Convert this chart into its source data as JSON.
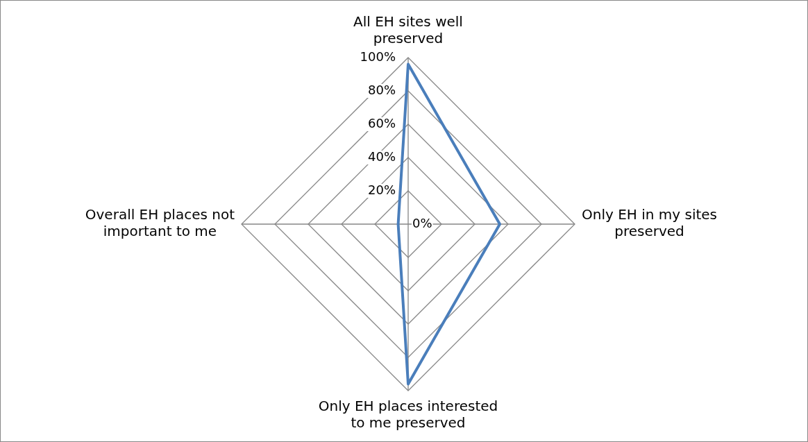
{
  "chart_data": {
    "type": "radar",
    "categories": [
      "All EH sites well preserved",
      "Only EH in my sites preserved",
      "Only EH places interested to me preserved",
      "Overall EH places not important to me"
    ],
    "series": [
      {
        "color": "#4a7ebb",
        "values": [
          96,
          55,
          96,
          6
        ]
      }
    ],
    "ylim": [
      0,
      100
    ],
    "yticks": [
      {
        "value": 0,
        "label": "0%"
      },
      {
        "value": 20,
        "label": "20%"
      },
      {
        "value": 40,
        "label": "40%"
      },
      {
        "value": 60,
        "label": "60%"
      },
      {
        "value": 80,
        "label": "80%"
      },
      {
        "value": 100,
        "label": "100%"
      }
    ],
    "grid": true,
    "marker": "none",
    "line_style": "solid"
  }
}
